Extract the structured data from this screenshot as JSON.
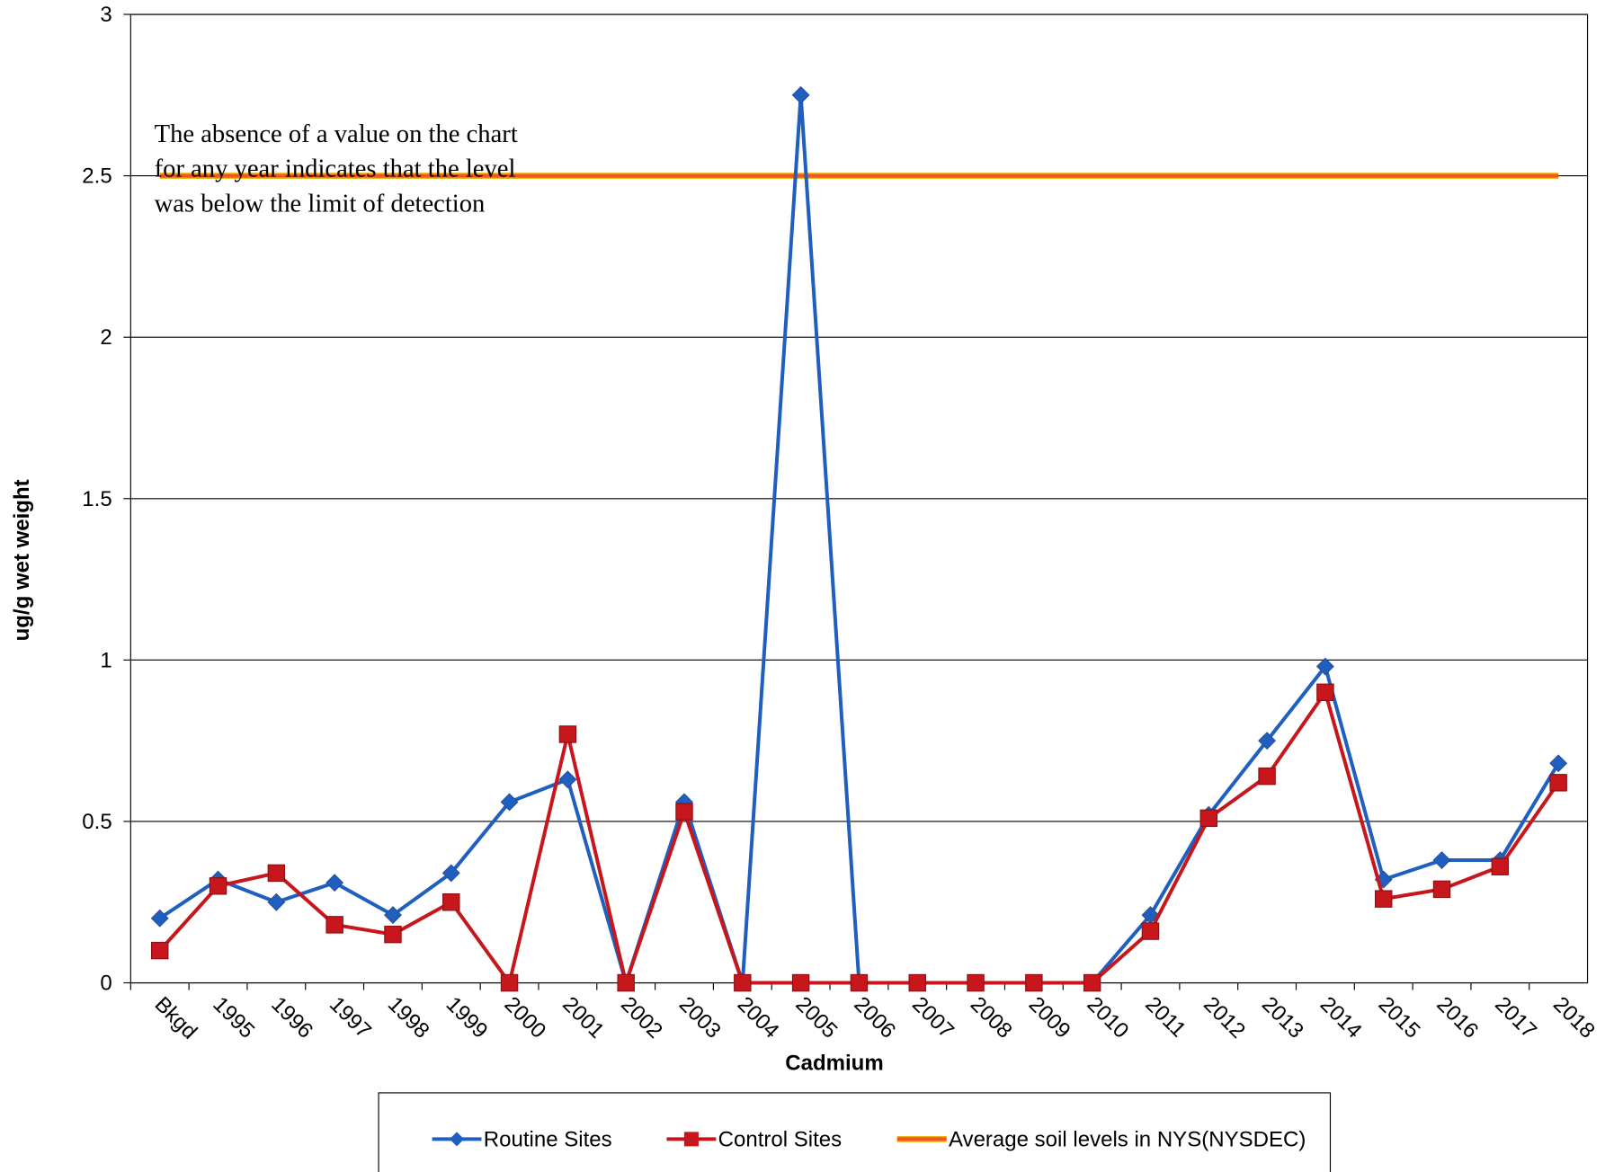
{
  "chart_data": {
    "type": "line",
    "x_label": "Cadmium",
    "y_label": "ug/g wet weight",
    "annotation": [
      "The absence of a value on the chart",
      "for any year indicates that the level",
      "was below the limit of detection"
    ],
    "categories": [
      "Bkgd",
      "1995",
      "1996",
      "1997",
      "1998",
      "1999",
      "2000",
      "2001",
      "2002",
      "2003",
      "2004",
      "2005",
      "2006",
      "2007",
      "2008",
      "2009",
      "2010",
      "2011",
      "2012",
      "2013",
      "2014",
      "2015",
      "2016",
      "2017",
      "2018"
    ],
    "series": [
      {
        "name": "Routine Sites",
        "color": "#1f5fbf",
        "marker": "diamond",
        "values": [
          0.2,
          0.32,
          0.25,
          0.31,
          0.21,
          0.34,
          0.56,
          0.63,
          0,
          0.56,
          0,
          2.75,
          0,
          0,
          0,
          0,
          0,
          0.21,
          0.52,
          0.75,
          0.98,
          0.32,
          0.38,
          0.38,
          0.68
        ]
      },
      {
        "name": "Control Sites",
        "color": "#c8161d",
        "marker": "square",
        "values": [
          0.1,
          0.3,
          0.34,
          0.18,
          0.15,
          0.25,
          0,
          0.77,
          0,
          0.53,
          0,
          0,
          0,
          0,
          0,
          0,
          0,
          0.16,
          0.51,
          0.64,
          0.9,
          0.26,
          0.29,
          0.36,
          0.62
        ]
      },
      {
        "name": "Average soil levels in NYS(NYSDEC)",
        "color": "#f0561e",
        "marker": "none",
        "values": [
          2.5,
          2.5,
          2.5,
          2.5,
          2.5,
          2.5,
          2.5,
          2.5,
          2.5,
          2.5,
          2.5,
          2.5,
          2.5,
          2.5,
          2.5,
          2.5,
          2.5,
          2.5,
          2.5,
          2.5,
          2.5,
          2.5,
          2.5,
          2.5,
          2.5
        ]
      }
    ],
    "ylim": [
      0,
      3
    ],
    "yticks": [
      0,
      0.5,
      1,
      1.5,
      2,
      2.5,
      3
    ],
    "grid": true,
    "legend": "bottom"
  }
}
